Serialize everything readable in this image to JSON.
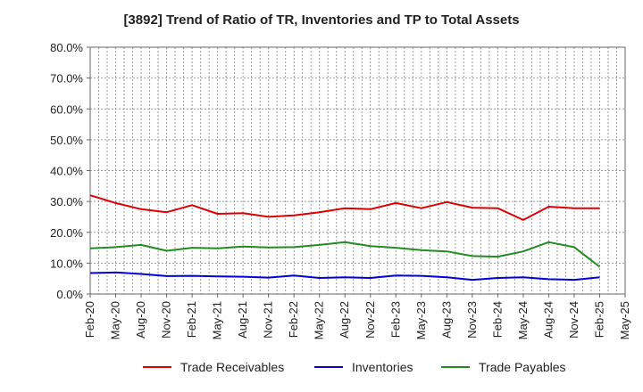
{
  "chart_data": {
    "type": "line",
    "title": "[3892]  Trend of Ratio of TR, Inventories and TP to Total Assets",
    "xlabel": "",
    "ylabel": "",
    "ylim": [
      0,
      80
    ],
    "y_ticks": [
      "0.0%",
      "10.0%",
      "20.0%",
      "30.0%",
      "40.0%",
      "50.0%",
      "60.0%",
      "70.0%",
      "80.0%"
    ],
    "x_ticks": [
      "Feb-20",
      "May-20",
      "Aug-20",
      "Nov-20",
      "Feb-21",
      "May-21",
      "Aug-21",
      "Nov-21",
      "Feb-22",
      "May-22",
      "Aug-22",
      "Nov-22",
      "Feb-23",
      "May-23",
      "Aug-23",
      "Nov-23",
      "Feb-24",
      "May-24",
      "Aug-24",
      "Nov-24",
      "Feb-25",
      "May-25"
    ],
    "categories": [
      "Feb-20",
      "May-20",
      "Aug-20",
      "Nov-20",
      "Feb-21",
      "May-21",
      "Aug-21",
      "Nov-21",
      "Feb-22",
      "May-22",
      "Aug-22",
      "Nov-22",
      "Feb-23",
      "May-23",
      "Aug-23",
      "Nov-23",
      "Feb-24",
      "May-24",
      "Aug-24",
      "Nov-24",
      "Feb-25"
    ],
    "grid": true,
    "legend_position": "bottom",
    "series": [
      {
        "name": "Trade Receivables",
        "color": "#dd0000",
        "values": [
          32.0,
          29.5,
          27.5,
          26.5,
          28.8,
          26.0,
          26.2,
          25.0,
          25.5,
          26.5,
          27.8,
          27.5,
          29.5,
          27.8,
          29.8,
          28.0,
          27.8,
          24.0,
          28.3,
          27.8,
          27.8
        ]
      },
      {
        "name": "Inventories",
        "color": "#0000dd",
        "values": [
          6.8,
          7.0,
          6.5,
          5.8,
          5.9,
          5.7,
          5.6,
          5.3,
          6.0,
          5.2,
          5.4,
          5.2,
          6.0,
          5.9,
          5.4,
          4.6,
          5.2,
          5.4,
          4.8,
          4.6,
          5.4
        ]
      },
      {
        "name": "Trade Payables",
        "color": "#228b22",
        "values": [
          14.8,
          15.2,
          15.9,
          14.0,
          15.0,
          14.8,
          15.4,
          15.1,
          15.2,
          15.9,
          16.8,
          15.5,
          15.0,
          14.2,
          13.8,
          12.3,
          12.1,
          13.8,
          16.8,
          15.2,
          8.8
        ]
      }
    ]
  }
}
